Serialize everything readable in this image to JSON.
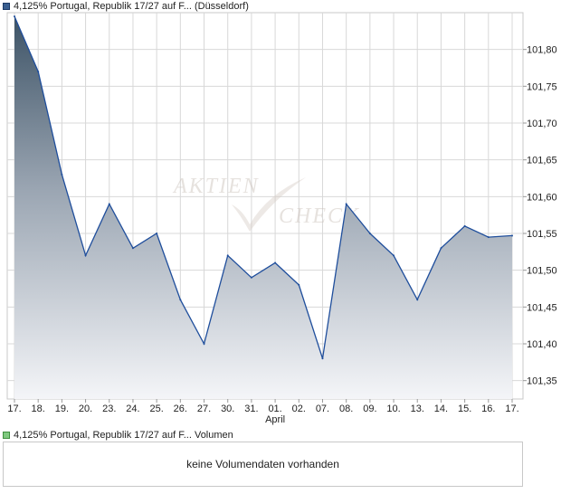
{
  "price_legend": {
    "label": "4,125% Portugal, Republik 17/27 auf F... (Düsseldorf)",
    "color": "#3a5f8f"
  },
  "volume_legend": {
    "label": "4,125% Portugal, Republik 17/27 auf F... Volumen",
    "color": "#7fc97f"
  },
  "volume_panel": {
    "message": "keine Volumendaten vorhanden"
  },
  "watermark": "AKTIEN CHECK",
  "chart_data": {
    "type": "area",
    "categories": [
      "17.",
      "18.",
      "19.",
      "20.",
      "23.",
      "24.",
      "25.",
      "26.",
      "27.",
      "30.",
      "31.",
      "01.",
      "02.",
      "07.",
      "08.",
      "09.",
      "10.",
      "13.",
      "14.",
      "15.",
      "16.",
      "17."
    ],
    "month_labels": [
      {
        "index": 11,
        "label": "April"
      }
    ],
    "series": [
      {
        "values": [
          101.845,
          101.77,
          101.63,
          101.52,
          101.59,
          101.53,
          101.55,
          101.46,
          101.4,
          101.52,
          101.49,
          101.51,
          101.48,
          101.38,
          101.59,
          101.55,
          101.52,
          101.46,
          101.53,
          101.56,
          101.545,
          101.547
        ],
        "color": "#1f4e9c"
      }
    ],
    "yticks": [
      "101,35",
      "101,40",
      "101,45",
      "101,50",
      "101,55",
      "101,60",
      "101,65",
      "101,70",
      "101,75",
      "101,80"
    ],
    "ylim": [
      101.325,
      101.85
    ],
    "grid": true,
    "y_axis_position": "right"
  }
}
